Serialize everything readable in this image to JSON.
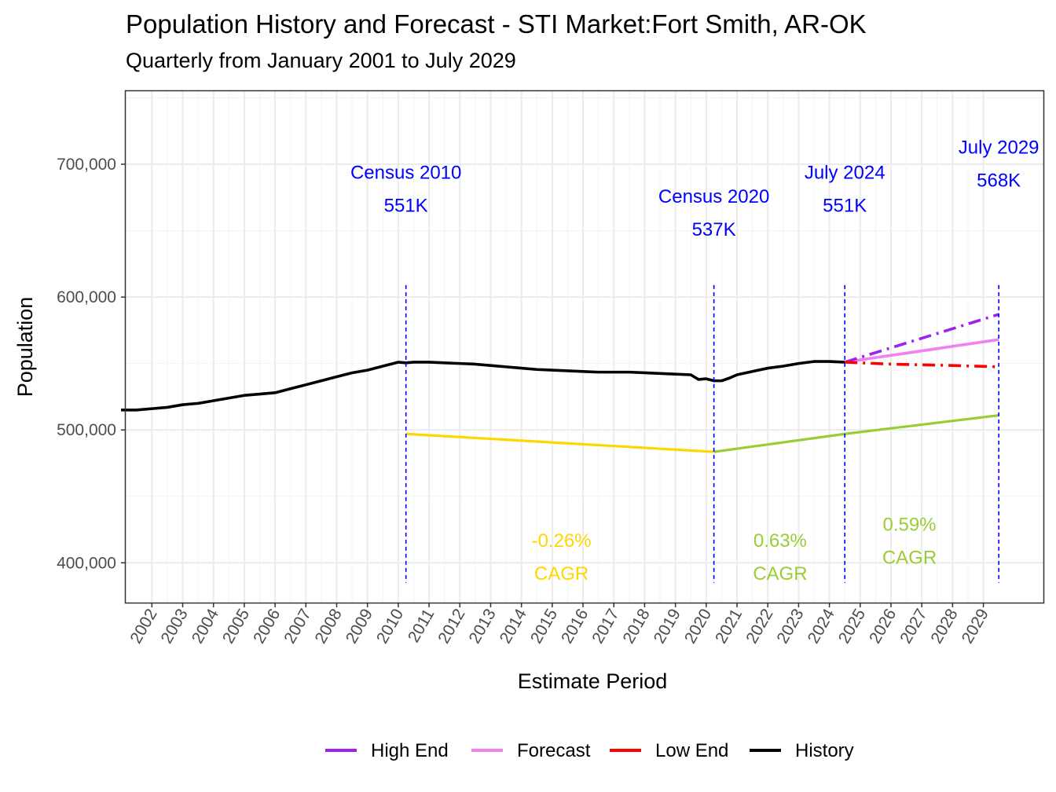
{
  "chart_data": {
    "type": "line",
    "title": "Population History and Forecast - STI Market:Fort Smith, AR-OK",
    "subtitle": "Quarterly from January 2001 to July 2029",
    "xlabel": "Estimate Period",
    "ylabel": "Population",
    "xlim": [
      2001.15,
      2030.95
    ],
    "ylim": [
      370000,
      755000
    ],
    "grid": true,
    "legend_position": "bottom",
    "x_ticks": [
      2002,
      2003,
      2004,
      2005,
      2006,
      2007,
      2008,
      2009,
      2010,
      2011,
      2012,
      2013,
      2014,
      2015,
      2016,
      2017,
      2018,
      2019,
      2020,
      2021,
      2022,
      2023,
      2024,
      2025,
      2026,
      2027,
      2028,
      2029
    ],
    "x_tick_labels": [
      "2002",
      "2003",
      "2004",
      "2005",
      "2006",
      "2007",
      "2008",
      "2009",
      "2010",
      "2011",
      "2012",
      "2013",
      "2014",
      "2015",
      "2016",
      "2017",
      "2018",
      "2019",
      "2020",
      "2021",
      "2022",
      "2023",
      "2024",
      "2025",
      "2026",
      "2027",
      "2028",
      "2029"
    ],
    "y_ticks": [
      400000,
      500000,
      600000,
      700000
    ],
    "y_tick_labels": [
      "400,000",
      "500,000",
      "600,000",
      "700,000"
    ],
    "series": [
      {
        "name": "History",
        "color": "#000000",
        "dash": "solid",
        "x": [
          2001.0,
          2001.5,
          2002.0,
          2002.5,
          2003.0,
          2003.5,
          2004.0,
          2004.5,
          2005.0,
          2005.5,
          2006.0,
          2006.5,
          2007.0,
          2007.5,
          2008.0,
          2008.5,
          2009.0,
          2009.5,
          2010.0,
          2010.25,
          2010.5,
          2011.0,
          2011.5,
          2012.0,
          2012.5,
          2013.0,
          2013.5,
          2014.0,
          2014.5,
          2015.0,
          2015.5,
          2016.0,
          2016.5,
          2017.0,
          2017.5,
          2018.0,
          2018.5,
          2019.0,
          2019.5,
          2019.75,
          2020.0,
          2020.25,
          2020.5,
          2020.75,
          2021.0,
          2021.5,
          2022.0,
          2022.5,
          2023.0,
          2023.5,
          2024.0,
          2024.5
        ],
        "y": [
          515000,
          515000,
          516000,
          517000,
          519000,
          520000,
          522000,
          524000,
          526000,
          527000,
          528000,
          531000,
          534000,
          537000,
          540000,
          543000,
          545000,
          548000,
          551000,
          550500,
          551000,
          551000,
          550500,
          550000,
          549500,
          548500,
          547500,
          546500,
          545500,
          545000,
          544500,
          544000,
          543500,
          543500,
          543500,
          543000,
          542500,
          542000,
          541500,
          538000,
          538500,
          537000,
          537000,
          539000,
          541500,
          544000,
          546500,
          548000,
          550000,
          551500,
          551500,
          551000
        ]
      },
      {
        "name": "Forecast",
        "color": "#EE82EE",
        "dash": "solid",
        "x": [
          2024.5,
          2029.5
        ],
        "y": [
          551000,
          568000
        ]
      },
      {
        "name": "High End",
        "color": "#A020F0",
        "dash": "dashdot",
        "x": [
          2024.5,
          2029.5
        ],
        "y": [
          551000,
          587000
        ]
      },
      {
        "name": "Low End",
        "color": "#FF0000",
        "dash": "dashdot",
        "x": [
          2024.5,
          2025.0,
          2026.0,
          2027.0,
          2028.0,
          2029.5
        ],
        "y": [
          551000,
          550500,
          549500,
          549000,
          548500,
          547500
        ]
      }
    ],
    "cagr_lines": [
      {
        "color": "#FFD700",
        "x": [
          2010.25,
          2020.25
        ],
        "y": [
          497000,
          483500
        ]
      },
      {
        "color": "#9ACD32",
        "x": [
          2020.25,
          2024.5,
          2029.5
        ],
        "y": [
          483500,
          497000,
          511000
        ]
      }
    ],
    "vlines": [
      2010.25,
      2020.25,
      2024.5,
      2029.5
    ],
    "vline_range": [
      385000,
      609000
    ],
    "annotations": [
      {
        "line1": "Census 2010",
        "line2": "551K",
        "color": "#0000FF",
        "x": 2010.25,
        "y": 689000
      },
      {
        "line1": "Census 2020",
        "line2": "537K",
        "color": "#0000FF",
        "x": 2020.25,
        "y": 671000
      },
      {
        "line1": "July 2024",
        "line2": "551K",
        "color": "#0000FF",
        "x": 2024.5,
        "y": 689000
      },
      {
        "line1": "July 2029",
        "line2": "568K",
        "color": "#0000FF",
        "x": 2029.5,
        "y": 708000
      },
      {
        "line1": "-0.26%",
        "line2": "CAGR",
        "color": "#FFD700",
        "x": 2015.3,
        "y": 412000
      },
      {
        "line1": "0.63%",
        "line2": "CAGR",
        "color": "#9ACD32",
        "x": 2022.4,
        "y": 412000
      },
      {
        "line1": "0.59%",
        "line2": "CAGR",
        "color": "#9ACD32",
        "x": 2026.6,
        "y": 424000
      }
    ],
    "legend": [
      {
        "label": "High End",
        "color": "#A020F0"
      },
      {
        "label": "Forecast",
        "color": "#EE82EE"
      },
      {
        "label": "Low End",
        "color": "#FF0000"
      },
      {
        "label": "History",
        "color": "#000000"
      }
    ]
  }
}
